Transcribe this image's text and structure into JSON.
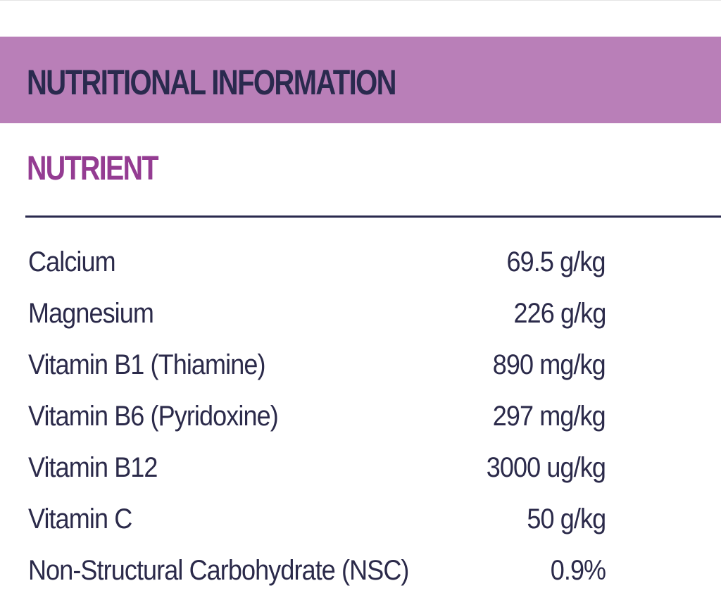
{
  "header": {
    "title": "NUTRITIONAL INFORMATION"
  },
  "table": {
    "column_header": "NUTRIENT",
    "rows": [
      [
        "Calcium",
        "69.5 g/kg"
      ],
      [
        "Magnesium",
        "226 g/kg"
      ],
      [
        "Vitamin B1 (Thiamine)",
        "890 mg/kg"
      ],
      [
        "Vitamin B6 (Pyridoxine)",
        "297 mg/kg"
      ],
      [
        "Vitamin B12",
        "3000 ug/kg"
      ],
      [
        "Vitamin C",
        "50 g/kg"
      ],
      [
        "Non-Structural Carbohydrate (NSC)",
        "0.9%"
      ]
    ]
  }
}
